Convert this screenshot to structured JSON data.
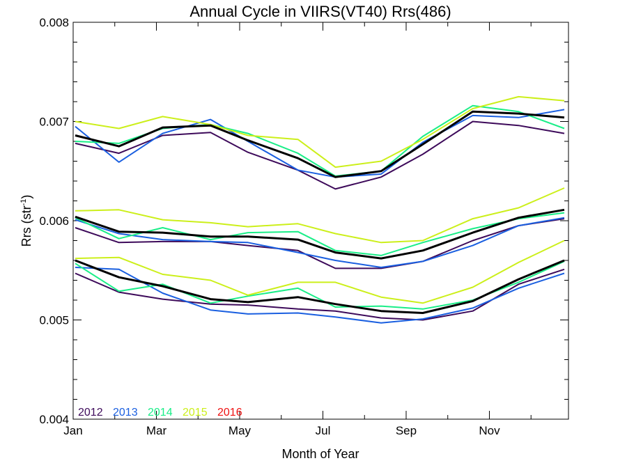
{
  "chart_data": {
    "type": "line",
    "title": "Annual Cycle in VIIRS(VT40) Rrs(486)",
    "xlabel": "Month of Year",
    "ylabel_main": "Rrs (str",
    "ylabel_sup": "-1",
    "ylabel_close": ")",
    "xlim": [
      1,
      12.9
    ],
    "ylim": [
      0.004,
      0.008
    ],
    "x_ticks": [
      {
        "x": 1,
        "label": "Jan"
      },
      {
        "x": 3,
        "label": "Mar"
      },
      {
        "x": 5,
        "label": "May"
      },
      {
        "x": 7,
        "label": "Jul"
      },
      {
        "x": 9,
        "label": "Sep"
      },
      {
        "x": 11,
        "label": "Nov"
      }
    ],
    "y_ticks": [
      {
        "y": 0.004,
        "label": "0.004"
      },
      {
        "y": 0.005,
        "label": "0.005"
      },
      {
        "y": 0.006,
        "label": "0.006"
      },
      {
        "y": 0.007,
        "label": "0.007"
      },
      {
        "y": 0.008,
        "label": "0.008"
      }
    ],
    "legend_position": "bottom-left",
    "legend": [
      {
        "label": "2012",
        "color": "#3d0a5a"
      },
      {
        "label": "2013",
        "color": "#1a5fe0"
      },
      {
        "label": "2014",
        "color": "#1aee88"
      },
      {
        "label": "2015",
        "color": "#ccef1a"
      },
      {
        "label": "2016",
        "color": "#ee1111"
      }
    ],
    "x": [
      1.05,
      2.1,
      3.15,
      4.3,
      5.2,
      6.4,
      7.3,
      8.4,
      9.4,
      10.6,
      11.7,
      12.8
    ],
    "groups": [
      {
        "series": [
          {
            "color": "#3d0a5a",
            "width": 2,
            "values": [
              0.00678,
              0.00668,
              0.00686,
              0.00689,
              0.00669,
              0.00651,
              0.00632,
              0.00644,
              0.00667,
              0.007,
              0.00696,
              0.00688
            ]
          },
          {
            "color": "#1a5fe0",
            "width": 2,
            "values": [
              0.00695,
              0.00659,
              0.00688,
              0.00702,
              0.0068,
              0.00651,
              0.00644,
              0.00647,
              0.00679,
              0.00706,
              0.00704,
              0.00712
            ]
          },
          {
            "color": "#1aee88",
            "width": 2,
            "values": [
              0.0068,
              0.00678,
              0.00693,
              0.00697,
              0.00688,
              0.00668,
              0.00645,
              0.0065,
              0.00685,
              0.00716,
              0.0071,
              0.00693
            ]
          },
          {
            "color": "#ccef1a",
            "width": 2,
            "values": [
              0.007,
              0.00693,
              0.00705,
              0.00697,
              0.00686,
              0.00682,
              0.00654,
              0.0066,
              0.00682,
              0.00713,
              0.00725,
              0.00721
            ]
          },
          {
            "color": "#000000",
            "width": 3,
            "values": [
              0.00686,
              0.00675,
              0.00694,
              0.00696,
              0.00681,
              0.00663,
              0.00644,
              0.0065,
              0.00677,
              0.0071,
              0.00708,
              0.00704
            ]
          }
        ]
      },
      {
        "series": [
          {
            "color": "#3d0a5a",
            "width": 2,
            "values": [
              0.00593,
              0.00578,
              0.00579,
              0.00579,
              0.00575,
              0.0057,
              0.00552,
              0.00552,
              0.00559,
              0.0058,
              0.00595,
              0.00602
            ]
          },
          {
            "color": "#1a5fe0",
            "width": 2,
            "values": [
              0.00601,
              0.00587,
              0.00581,
              0.00579,
              0.00578,
              0.00568,
              0.0056,
              0.00553,
              0.00559,
              0.00575,
              0.00595,
              0.00603
            ]
          },
          {
            "color": "#1aee88",
            "width": 2,
            "values": [
              0.00603,
              0.00582,
              0.00593,
              0.00581,
              0.00588,
              0.00589,
              0.0057,
              0.00565,
              0.00578,
              0.00592,
              0.00602,
              0.00608
            ]
          },
          {
            "color": "#ccef1a",
            "width": 2,
            "values": [
              0.0061,
              0.00611,
              0.00601,
              0.00598,
              0.00594,
              0.00597,
              0.00587,
              0.00578,
              0.0058,
              0.00602,
              0.00613,
              0.00633
            ]
          },
          {
            "color": "#000000",
            "width": 3,
            "values": [
              0.00604,
              0.00589,
              0.00588,
              0.00584,
              0.00584,
              0.00581,
              0.00568,
              0.00562,
              0.0057,
              0.00588,
              0.00603,
              0.00611
            ]
          }
        ]
      },
      {
        "series": [
          {
            "color": "#3d0a5a",
            "width": 2,
            "values": [
              0.00547,
              0.00528,
              0.00521,
              0.00516,
              0.00515,
              0.00511,
              0.00509,
              0.00502,
              0.005,
              0.00509,
              0.00536,
              0.00551
            ]
          },
          {
            "color": "#1a5fe0",
            "width": 2,
            "values": [
              0.00553,
              0.00551,
              0.00527,
              0.0051,
              0.00506,
              0.00507,
              0.00503,
              0.00497,
              0.00501,
              0.00512,
              0.00532,
              0.00547
            ]
          },
          {
            "color": "#1aee88",
            "width": 2,
            "values": [
              0.00557,
              0.00529,
              0.00536,
              0.00517,
              0.00524,
              0.00532,
              0.00513,
              0.00514,
              0.00511,
              0.0052,
              0.00538,
              0.00559
            ]
          },
          {
            "color": "#ccef1a",
            "width": 2,
            "values": [
              0.00562,
              0.00563,
              0.00546,
              0.0054,
              0.00525,
              0.00538,
              0.00538,
              0.00523,
              0.00517,
              0.00533,
              0.00558,
              0.0058
            ]
          },
          {
            "color": "#000000",
            "width": 3,
            "values": [
              0.0056,
              0.00543,
              0.00534,
              0.00521,
              0.00518,
              0.00523,
              0.00516,
              0.00509,
              0.00507,
              0.00519,
              0.00541,
              0.0056
            ]
          }
        ]
      }
    ]
  }
}
